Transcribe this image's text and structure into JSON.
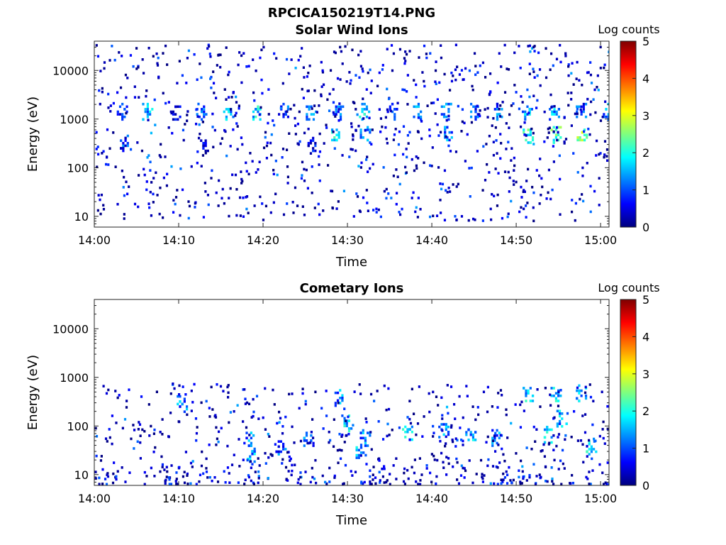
{
  "figure_title": "RPCICA150219T14.PNG",
  "colormap": [
    "#00007f",
    "#0000ff",
    "#007fff",
    "#00ffff",
    "#7fff7f",
    "#ffff00",
    "#ff7f00",
    "#ff0000",
    "#7f0000"
  ],
  "chart_data": [
    {
      "type": "heatmap",
      "title": "Solar Wind Ions",
      "xlabel": "Time",
      "ylabel": "Energy (eV)",
      "x_ticks": [
        "14:00",
        "14:10",
        "14:20",
        "14:30",
        "14:40",
        "14:50",
        "15:00"
      ],
      "x_range_minutes": [
        0,
        61
      ],
      "y_scale": "log",
      "y_ticks": [
        {
          "value": 10,
          "label": "10"
        },
        {
          "value": 100,
          "label": "100"
        },
        {
          "value": 1000,
          "label": "1000"
        },
        {
          "value": 10000,
          "label": "10000"
        }
      ],
      "y_range": [
        6,
        40000
      ],
      "colorbar": {
        "label": "Log counts",
        "range": [
          0,
          5
        ],
        "ticks": [
          "0",
          "1",
          "2",
          "3",
          "4",
          "5"
        ]
      },
      "bursts": [
        {
          "t": 3.2,
          "e": 1500,
          "c": 1.5
        },
        {
          "t": 6.2,
          "e": 1500,
          "c": 2.0
        },
        {
          "t": 9.5,
          "e": 1500,
          "c": 1.0
        },
        {
          "t": 12.6,
          "e": 1500,
          "c": 1.5
        },
        {
          "t": 15.8,
          "e": 1500,
          "c": 2.0
        },
        {
          "t": 19.0,
          "e": 1500,
          "c": 2.3
        },
        {
          "t": 22.3,
          "e": 1500,
          "c": 1.5
        },
        {
          "t": 25.6,
          "e": 1500,
          "c": 2.0
        },
        {
          "t": 28.8,
          "e": 1500,
          "c": 1.5
        },
        {
          "t": 31.9,
          "e": 1500,
          "c": 2.2
        },
        {
          "t": 35.2,
          "e": 1500,
          "c": 1.5
        },
        {
          "t": 38.3,
          "e": 1500,
          "c": 2.0
        },
        {
          "t": 41.6,
          "e": 1500,
          "c": 1.8
        },
        {
          "t": 44.8,
          "e": 1500,
          "c": 1.5
        },
        {
          "t": 47.9,
          "e": 1500,
          "c": 1.6
        },
        {
          "t": 51.2,
          "e": 1500,
          "c": 2.0
        },
        {
          "t": 54.4,
          "e": 1500,
          "c": 2.0
        },
        {
          "t": 57.6,
          "e": 1500,
          "c": 1.5
        },
        {
          "t": 60.8,
          "e": 1500,
          "c": 1.8
        },
        {
          "t": 28.6,
          "e": 500,
          "c": 2.5
        },
        {
          "t": 32.0,
          "e": 500,
          "c": 2.0
        },
        {
          "t": 41.7,
          "e": 500,
          "c": 1.8
        },
        {
          "t": 51.3,
          "e": 500,
          "c": 2.6
        },
        {
          "t": 54.6,
          "e": 500,
          "c": 2.8
        },
        {
          "t": 57.7,
          "e": 500,
          "c": 3.2
        },
        {
          "t": 3.3,
          "e": 300,
          "c": 1.4
        },
        {
          "t": 12.8,
          "e": 300,
          "c": 1.2
        },
        {
          "t": 25.8,
          "e": 300,
          "c": 1.0
        }
      ]
    },
    {
      "type": "heatmap",
      "title": "Cometary Ions",
      "xlabel": "Time",
      "ylabel": "Energy (eV)",
      "x_ticks": [
        "14:00",
        "14:10",
        "14:20",
        "14:30",
        "14:40",
        "14:50",
        "15:00"
      ],
      "x_range_minutes": [
        0,
        61
      ],
      "y_scale": "log",
      "y_ticks": [
        {
          "value": 10,
          "label": "10"
        },
        {
          "value": 100,
          "label": "100"
        },
        {
          "value": 1000,
          "label": "1000"
        },
        {
          "value": 10000,
          "label": "10000"
        }
      ],
      "y_range": [
        6,
        40000
      ],
      "colorbar": {
        "label": "Log counts",
        "range": [
          0,
          5
        ],
        "ticks": [
          "0",
          "1",
          "2",
          "3",
          "4",
          "5"
        ]
      },
      "bursts": [
        {
          "t": 18.6,
          "e": 25,
          "c": 2.0
        },
        {
          "t": 18.2,
          "e": 60,
          "c": 1.8
        },
        {
          "t": 22.0,
          "e": 40,
          "c": 1.6
        },
        {
          "t": 25.3,
          "e": 60,
          "c": 1.6
        },
        {
          "t": 29.8,
          "e": 120,
          "c": 2.2
        },
        {
          "t": 31.5,
          "e": 30,
          "c": 2.0
        },
        {
          "t": 32.0,
          "e": 60,
          "c": 1.8
        },
        {
          "t": 37.0,
          "e": 80,
          "c": 2.2
        },
        {
          "t": 41.3,
          "e": 90,
          "c": 1.8
        },
        {
          "t": 44.5,
          "e": 70,
          "c": 2.0
        },
        {
          "t": 47.6,
          "e": 60,
          "c": 1.8
        },
        {
          "t": 53.8,
          "e": 70,
          "c": 2.3
        },
        {
          "t": 55.3,
          "e": 150,
          "c": 2.0
        },
        {
          "t": 58.8,
          "e": 40,
          "c": 2.4
        },
        {
          "t": 29.0,
          "e": 400,
          "c": 1.8
        },
        {
          "t": 10.3,
          "e": 300,
          "c": 1.8
        },
        {
          "t": 51.3,
          "e": 500,
          "c": 2.2
        },
        {
          "t": 54.6,
          "e": 500,
          "c": 2.2
        },
        {
          "t": 57.6,
          "e": 500,
          "c": 2.0
        }
      ]
    }
  ]
}
